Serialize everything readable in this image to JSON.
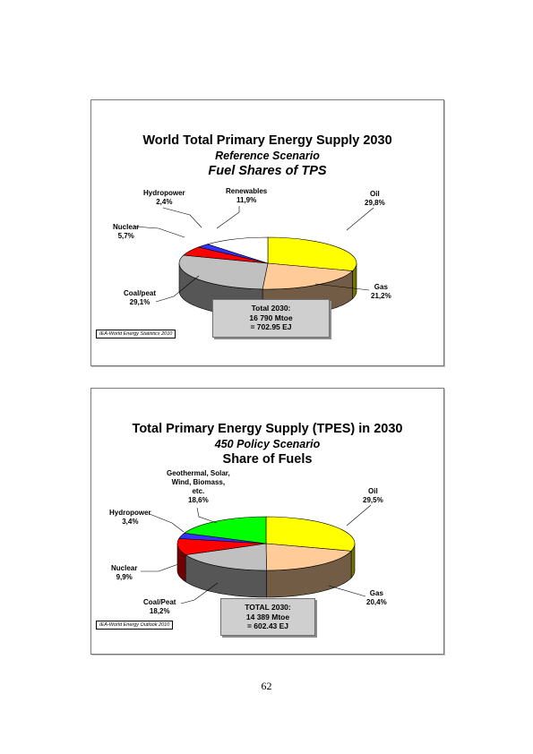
{
  "chart_data": [
    {
      "type": "pie",
      "title": "World Total Primary Energy Supply 2030",
      "subtitle": "Reference Scenario",
      "subtitle2": "Fuel Shares of TPS",
      "slices": [
        {
          "label": "Oil",
          "value_text": "29,8%",
          "value": 29.8,
          "color": "#ffff00"
        },
        {
          "label": "Gas",
          "value_text": "21,2%",
          "value": 21.2,
          "color": "#ffcc99"
        },
        {
          "label": "Coal/peat",
          "value_text": "29,1%",
          "value": 29.1,
          "color": "#c0c0c0"
        },
        {
          "label": "Nuclear",
          "value_text": "5,7%",
          "value": 5.7,
          "color": "#ff0000"
        },
        {
          "label": "Hydropower",
          "value_text": "2,4%",
          "value": 2.4,
          "color": "#3333ff"
        },
        {
          "label": "Renewables",
          "value_text": "11,9%",
          "value": 11.9,
          "color": "#ffffff"
        }
      ],
      "total_lines": [
        "Total 2030:",
        "16 790 Mtoe",
        "= 702.95 EJ"
      ],
      "source": "IEA-World Energy Statistics 2010"
    },
    {
      "type": "pie",
      "title": "Total Primary Energy Supply (TPES) in 2030",
      "subtitle": "450 Policy Scenario",
      "subtitle2": "Share of Fuels",
      "slices": [
        {
          "label": "Oil",
          "value_text": "29,5%",
          "value": 29.5,
          "color": "#ffff00"
        },
        {
          "label": "Gas",
          "value_text": "20,4%",
          "value": 20.4,
          "color": "#ffcc99"
        },
        {
          "label": "Coal/Peat",
          "value_text": "18,2%",
          "value": 18.2,
          "color": "#c0c0c0"
        },
        {
          "label": "Nuclear",
          "value_text": "9,9%",
          "value": 9.9,
          "color": "#ff0000"
        },
        {
          "label": "Hydropower",
          "value_text": "3,4%",
          "value": 3.4,
          "color": "#3333ff"
        },
        {
          "label_lines": [
            "Geothermal, Solar,",
            "Wind, Biomass,",
            "etc."
          ],
          "value_text": "18,6%",
          "value": 18.6,
          "color": "#00ff00"
        }
      ],
      "total_lines": [
        "TOTAL 2030:",
        "14 389 Mtoe",
        "= 602.43 EJ"
      ],
      "source": "IEA-World Energy Outlook 2010"
    }
  ],
  "page": {
    "number": "62"
  }
}
